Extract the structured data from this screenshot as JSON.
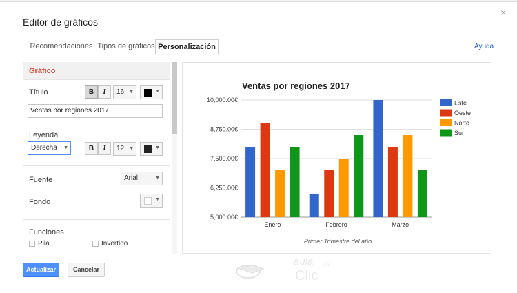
{
  "dialog": {
    "title": "Editor de gráficos",
    "close_glyph": "×"
  },
  "tabs": [
    {
      "label": "Recomendaciones"
    },
    {
      "label": "Tipos de gráficos"
    },
    {
      "label": "Personalización",
      "active": true
    }
  ],
  "help": {
    "label": "Ayuda"
  },
  "panel": {
    "section_title": "Gráfico",
    "title_label": "Título",
    "title_font_size": "16",
    "title_value": "Ventas por regiones 2017",
    "title_color": "#000000",
    "legend_label": "Leyenda",
    "legend_position": "Derecha",
    "legend_font_size": "12",
    "legend_color": "#222222",
    "bold_glyph": "B",
    "italic_glyph": "I",
    "font_label": "Fuente",
    "font_value": "Arial",
    "background_label": "Fondo",
    "background_color": "#ffffff",
    "functions_label": "Funciones",
    "stack_label": "Pila",
    "reversed_label": "Invertido"
  },
  "buttons": {
    "update": "Actualizar",
    "cancel": "Cancelar"
  },
  "colors": {
    "accent_blue": "#4d90fe",
    "section_red": "#dd4b39",
    "link_blue": "#1155cc"
  },
  "chart_data": {
    "type": "bar",
    "title": "Ventas por regiones 2017",
    "xlabel": "Primer Trimestre del año",
    "ylabel": "",
    "categories": [
      "Enero",
      "Febrero",
      "Marzo"
    ],
    "ylim": [
      5000,
      10000
    ],
    "yticks": [
      5000,
      6250,
      7500,
      8750,
      10000
    ],
    "ytick_labels": [
      "5,000.00€",
      "6,250.00€",
      "7,500.00€",
      "8,750.00€",
      "10,000.00€"
    ],
    "grid": true,
    "legend_position": "right",
    "series": [
      {
        "name": "Este",
        "color": "#3366cc",
        "values": [
          8000,
          6000,
          10000
        ]
      },
      {
        "name": "Oeste",
        "color": "#dc3912",
        "values": [
          9000,
          7000,
          8000
        ]
      },
      {
        "name": "Norte",
        "color": "#ff9900",
        "values": [
          7000,
          7500,
          8500
        ]
      },
      {
        "name": "Sur",
        "color": "#109618",
        "values": [
          8000,
          8500,
          7000
        ]
      }
    ]
  },
  "watermark": {
    "text_top": "aula",
    "text_bottom": "Clic",
    "text_small": ".com"
  }
}
